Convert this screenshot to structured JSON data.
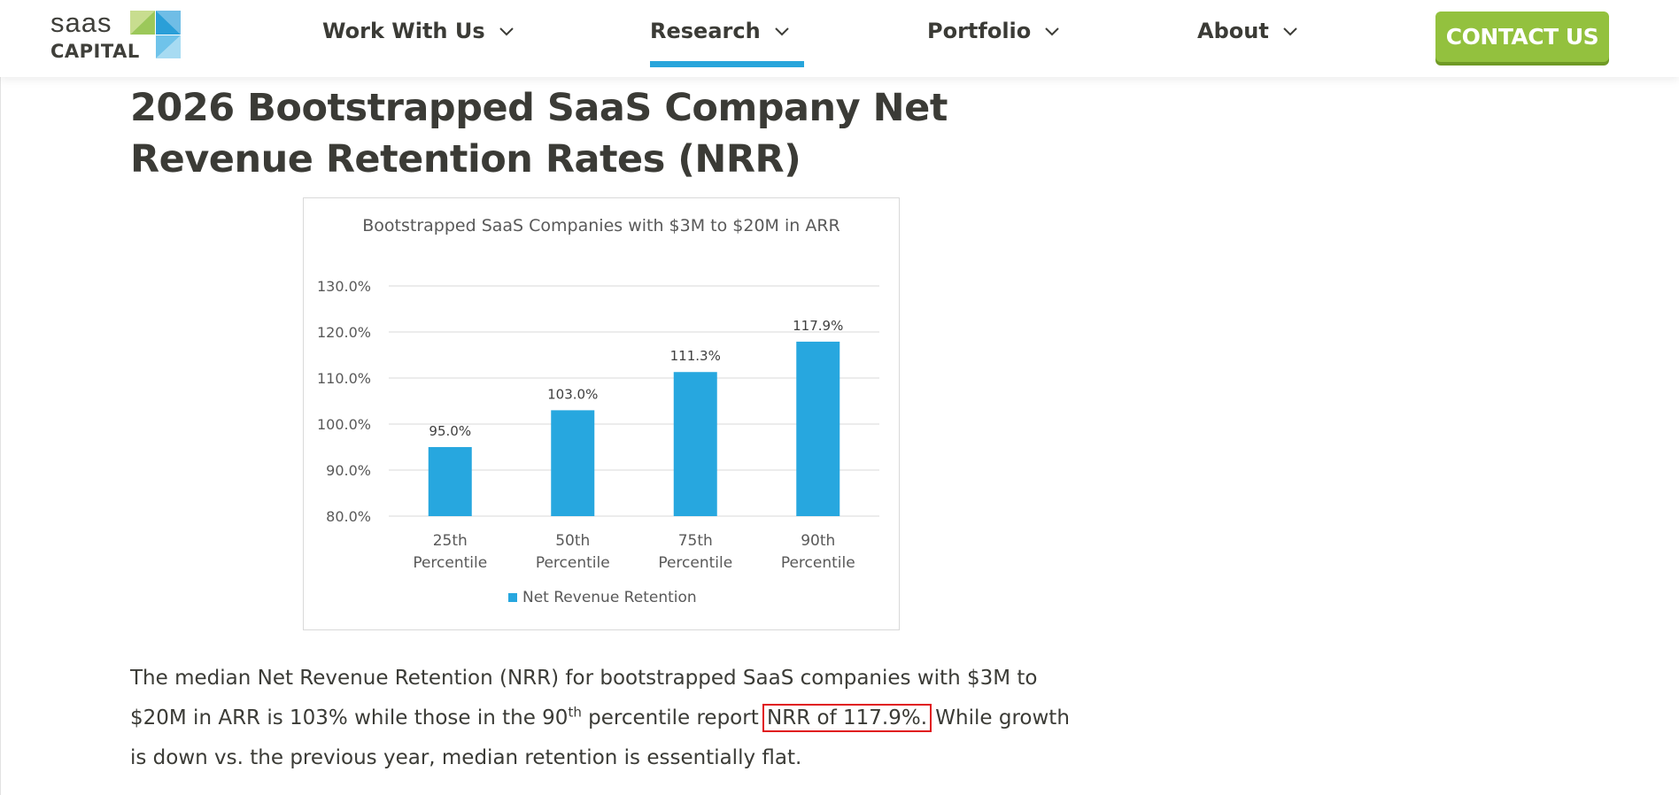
{
  "header": {
    "logo": {
      "line1": "saas",
      "line2": "CAPITAL"
    },
    "nav": [
      {
        "label": "Work With Us"
      },
      {
        "label": "Research"
      },
      {
        "label": "Portfolio"
      },
      {
        "label": "About"
      }
    ],
    "active_nav": "Research",
    "contact_label": "CONTACT US"
  },
  "colors": {
    "accent_blue": "#27a5db",
    "bar_blue": "#27a7df",
    "cta_green": "#93c13e",
    "highlight_red": "#e0161b",
    "text_dark": "#3b3b36"
  },
  "article": {
    "title": "2026 Bootstrapped SaaS Company Net Revenue Retention Rates (NRR)",
    "paragraph": {
      "part1": "The median Net Revenue Retention (NRR) for bootstrapped SaaS companies with $3M to $20M in ARR is 103% while those in the 90",
      "sup": "th",
      "part2": " percentile report ",
      "highlight": "NRR of 117.9%.",
      "part3": " While growth is down vs. the previous year, median retention is essentially flat."
    }
  },
  "chart_data": {
    "type": "bar",
    "title": "Bootstrapped SaaS Companies with $3M to $20M in ARR",
    "categories": [
      [
        "25th",
        "Percentile"
      ],
      [
        "50th",
        "Percentile"
      ],
      [
        "75th",
        "Percentile"
      ],
      [
        "90th",
        "Percentile"
      ]
    ],
    "series": [
      {
        "name": "Net Revenue Retention",
        "values": [
          95.0,
          103.0,
          111.3,
          117.9
        ]
      }
    ],
    "data_labels": [
      "95.0%",
      "103.0%",
      "111.3%",
      "117.9%"
    ],
    "y_ticks": [
      "80.0%",
      "90.0%",
      "100.0%",
      "110.0%",
      "120.0%",
      "130.0%"
    ],
    "ylim": [
      80,
      130
    ],
    "y_tick_step": 10,
    "grid": true,
    "legend_position": "bottom"
  }
}
